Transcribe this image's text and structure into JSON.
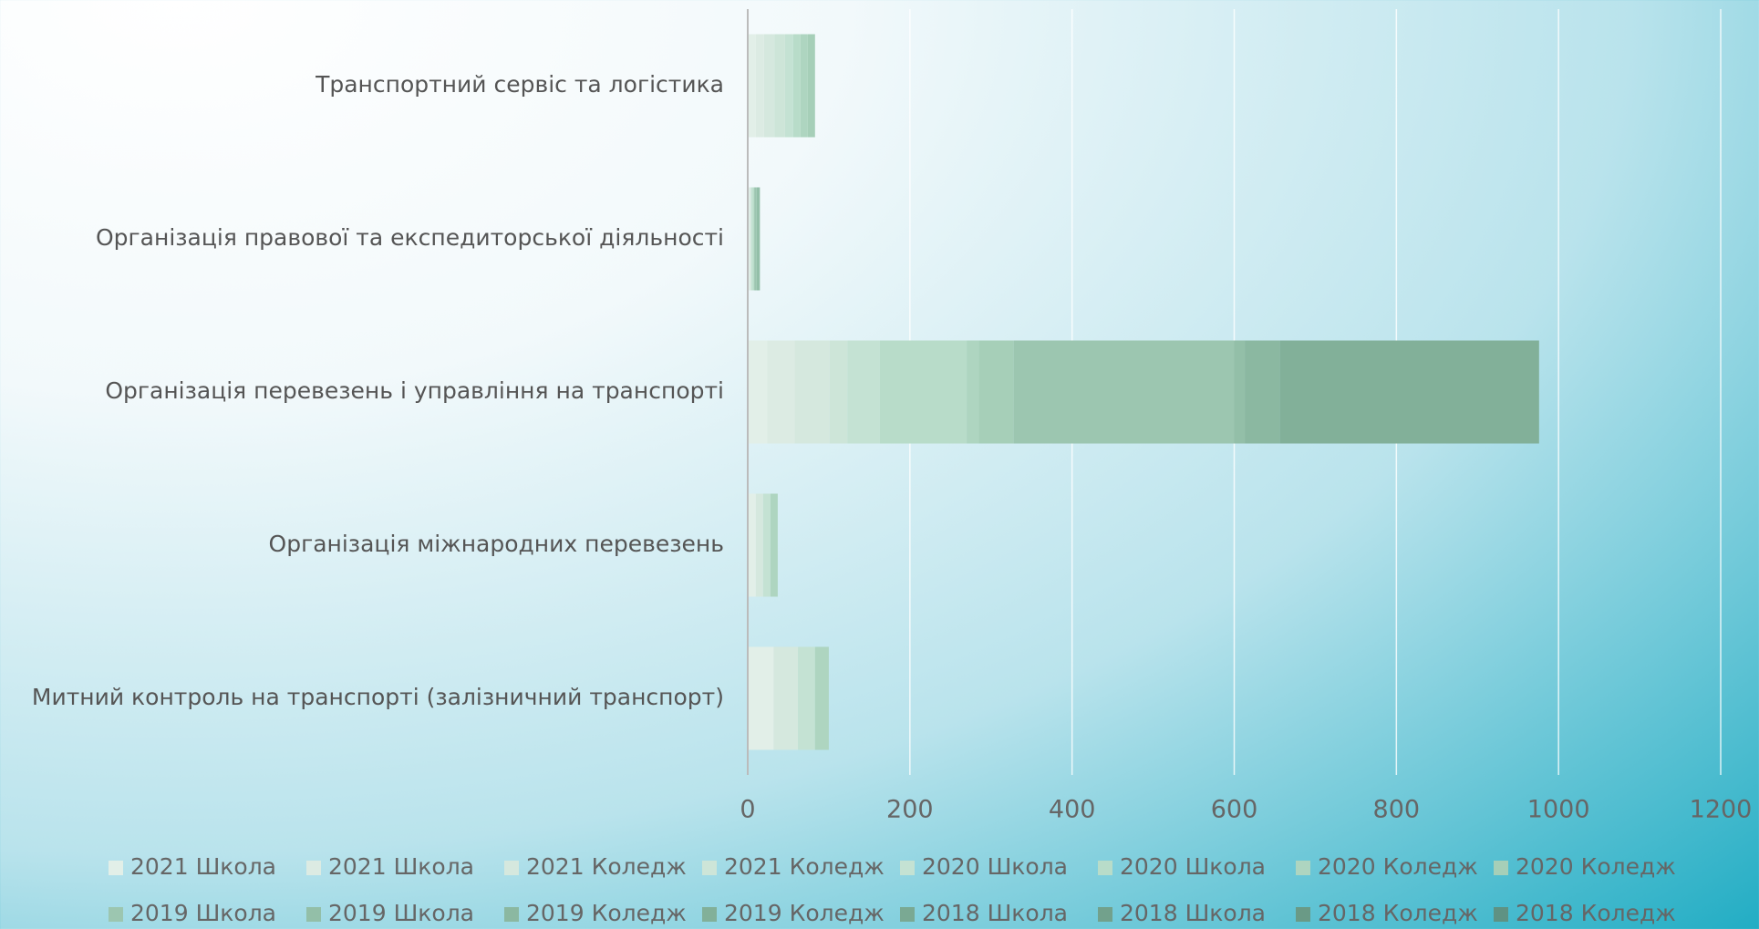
{
  "chart_data": {
    "type": "hbar_stacked",
    "categories": [
      "Транспортний сервіс та логістика",
      "Організація правової та експедиторської діяльності",
      "Організація перевезень і управління на транспорті",
      "Організація міжнародних перевезень",
      "Митний контроль на транспорті (залізничний транспорт)"
    ],
    "series": [
      {
        "name": "2021 Школа",
        "color": "#e2efe8",
        "values": [
          10,
          2,
          24,
          10,
          32
        ]
      },
      {
        "name": "2021 Школа",
        "color": "#dcebe3",
        "values": [
          10,
          2,
          34,
          0,
          0
        ]
      },
      {
        "name": "2021 Коледж",
        "color": "#d5e8de",
        "values": [
          13,
          0,
          43,
          9,
          30
        ]
      },
      {
        "name": "2021 Коледж",
        "color": "#cde5d8",
        "values": [
          13,
          0,
          22,
          0,
          0
        ]
      },
      {
        "name": "2020 Школа",
        "color": "#c4e2d3",
        "values": [
          10,
          2,
          40,
          9,
          21
        ]
      },
      {
        "name": "2020 Школа",
        "color": "#b8dcc9",
        "values": [
          9,
          2,
          107,
          0,
          0
        ]
      },
      {
        "name": "2020 Коледж",
        "color": "#aed5c0",
        "values": [
          9,
          0,
          15,
          9,
          17
        ]
      },
      {
        "name": "2020 Коледж",
        "color": "#a6cfb8",
        "values": [
          9,
          0,
          43,
          0,
          0
        ]
      },
      {
        "name": "2019 Школа",
        "color": "#9cc6b0",
        "values": [
          0,
          3,
          272,
          0,
          0
        ]
      },
      {
        "name": "2019 Школа",
        "color": "#93bfa8",
        "values": [
          0,
          4,
          13,
          0,
          0
        ]
      },
      {
        "name": "2019 Коледж",
        "color": "#8bb8a1",
        "values": [
          0,
          0,
          43,
          0,
          0
        ]
      },
      {
        "name": "2019 Коледж",
        "color": "#82b099",
        "values": [
          0,
          0,
          320,
          0,
          0
        ]
      },
      {
        "name": "2018 Школа",
        "color": "#7aa993",
        "values": [
          0,
          0,
          0,
          0,
          0
        ]
      },
      {
        "name": "2018 Школа",
        "color": "#72a18c",
        "values": [
          0,
          0,
          0,
          0,
          0
        ]
      },
      {
        "name": "2018 Коледж",
        "color": "#6a9a86",
        "values": [
          0,
          0,
          0,
          0,
          0
        ]
      },
      {
        "name": "2018 Коледж",
        "color": "#5f9283",
        "values": [
          0,
          0,
          0,
          0,
          0
        ]
      }
    ],
    "xlim": [
      0,
      1200
    ],
    "xticks": [
      0,
      200,
      400,
      600,
      800,
      1000,
      1200
    ],
    "grid": true
  }
}
